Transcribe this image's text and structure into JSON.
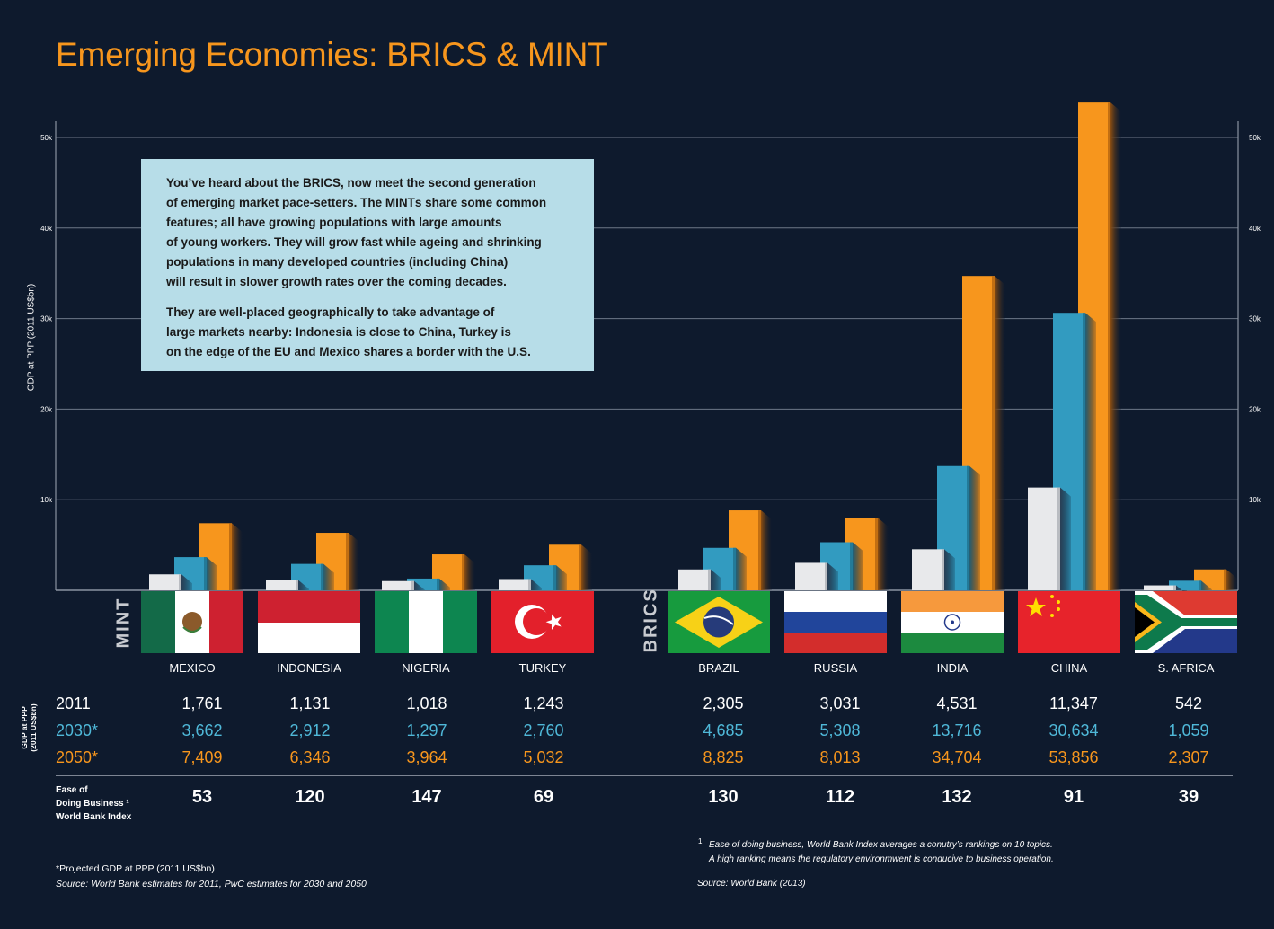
{
  "title": "Emerging Economies: BRICS & MINT",
  "colors": {
    "background": "#0e1a2d",
    "accent_title": "#f7961d",
    "series_2011": "#e8e9eb",
    "series_2030": "#329bc0",
    "series_2050": "#f7961d",
    "text_2030": "#4fb8d8",
    "info_box": "#b7dde8"
  },
  "info_box": {
    "paragraph1": [
      "You’ve heard about the BRICS, now meet the second generation",
      "of emerging market pace-setters. The MINTs share some common",
      "features; all have growing populations with large amounts",
      "of young workers. They will grow fast while ageing and shrinking",
      "populations in many developed countries (including China)",
      "will result in slower growth rates over the coming decades."
    ],
    "paragraph2": [
      "They are well-placed geographically to take advantage of",
      "large markets nearby: Indonesia is close to China, Turkey is",
      "on the edge of the EU and Mexico shares a border with the U.S."
    ]
  },
  "group_labels": {
    "mint": "MINT",
    "brics": "BRICS"
  },
  "table": {
    "side_label": "GDP at PPP (2011 US$bn)",
    "row_labels": [
      "2011",
      "2030*",
      "2050*"
    ],
    "ease_label_lines": [
      "Ease of",
      "Doing Business ¹",
      "World Bank Index"
    ]
  },
  "chart_data": {
    "type": "bar",
    "title": "Emerging Economies: BRICS & MINT",
    "xlabel": "",
    "ylabel": "GDP at PPP (2011 US$bn)",
    "ylim": [
      0,
      50000
    ],
    "yticks": [
      10000,
      20000,
      30000,
      40000,
      50000
    ],
    "ytick_labels": [
      "10k",
      "20k",
      "30k",
      "40k",
      "50k"
    ],
    "grid": true,
    "axes": "left-and-right",
    "categories": [
      "MEXICO",
      "INDONESIA",
      "NIGERIA",
      "TURKEY",
      "BRAZIL",
      "RUSSIA",
      "INDIA",
      "CHINA",
      "S. AFRICA"
    ],
    "groups": [
      {
        "name": "MINT",
        "categories": [
          "MEXICO",
          "INDONESIA",
          "NIGERIA",
          "TURKEY"
        ]
      },
      {
        "name": "BRICS",
        "categories": [
          "BRAZIL",
          "RUSSIA",
          "INDIA",
          "CHINA",
          "S. AFRICA"
        ]
      }
    ],
    "series": [
      {
        "name": "2011",
        "values": [
          1761,
          1131,
          1018,
          1243,
          2305,
          3031,
          4531,
          11347,
          542
        ]
      },
      {
        "name": "2030*",
        "values": [
          3662,
          2912,
          1297,
          2760,
          4685,
          5308,
          13716,
          30634,
          1059
        ]
      },
      {
        "name": "2050*",
        "values": [
          7409,
          6346,
          3964,
          5032,
          8825,
          8013,
          34704,
          53856,
          2307
        ]
      }
    ],
    "value_labels": {
      "2011": [
        "1,761",
        "1,131",
        "1,018",
        "1,243",
        "2,305",
        "3,031",
        "4,531",
        "11,347",
        "542"
      ],
      "2030*": [
        "3,662",
        "2,912",
        "1,297",
        "2,760",
        "4,685",
        "5,308",
        "13,716",
        "30,634",
        "1,059"
      ],
      "2050*": [
        "7,409",
        "6,346",
        "3,964",
        "5,032",
        "8,825",
        "8,013",
        "34,704",
        "53,856",
        "2,307"
      ]
    },
    "ease_of_doing_business": [
      53,
      120,
      147,
      69,
      130,
      112,
      132,
      91,
      39
    ]
  },
  "footnotes": {
    "projected": "*Projected GDP at PPP (2011 US$bn)",
    "source_left": "Source: World Bank estimates for 2011, PwC estimates for 2030 and 2050",
    "ease_note_marker": "1",
    "ease_note_line1": "Ease of doing business, World Bank Index averages a conutry’s rankings on 10 topics.",
    "ease_note_line2": "A high ranking means the regulatory environmwent is conducive to business operation.",
    "source_right": "Source: World Bank (2013)"
  }
}
